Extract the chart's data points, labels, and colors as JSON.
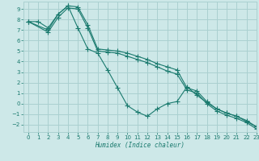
{
  "xlabel": "Humidex (Indice chaleur)",
  "bg_color": "#cde8e8",
  "grid_color": "#aad0d0",
  "line_color": "#1a7a6e",
  "xlim": [
    -0.5,
    23
  ],
  "ylim": [
    -2.7,
    9.7
  ],
  "xticks": [
    0,
    1,
    2,
    3,
    4,
    5,
    6,
    7,
    8,
    9,
    10,
    11,
    12,
    13,
    14,
    15,
    16,
    17,
    18,
    19,
    20,
    21,
    22,
    23
  ],
  "yticks": [
    -2,
    -1,
    0,
    1,
    2,
    3,
    4,
    5,
    6,
    7,
    8,
    9
  ],
  "line1_x": [
    0,
    1,
    2,
    3,
    4,
    5,
    6,
    7,
    8,
    9,
    10,
    11,
    12,
    13,
    14,
    15,
    16,
    17,
    18,
    19,
    20,
    21,
    22,
    23
  ],
  "line1_y": [
    7.8,
    7.8,
    7.2,
    8.5,
    9.3,
    7.2,
    5.2,
    4.8,
    3.2,
    1.5,
    -0.2,
    -0.8,
    -1.2,
    -0.5,
    0.0,
    0.2,
    1.6,
    0.8,
    0.1,
    -0.5,
    -0.9,
    -1.2,
    -1.7,
    -2.2
  ],
  "line2_x": [
    0,
    2,
    3,
    4,
    5,
    6,
    7,
    8,
    9,
    10,
    11,
    12,
    13,
    14,
    15,
    16,
    17,
    18,
    19,
    20,
    21,
    22,
    23
  ],
  "line2_y": [
    7.8,
    7.0,
    8.5,
    9.3,
    9.2,
    7.5,
    5.2,
    5.1,
    5.0,
    4.8,
    4.5,
    4.2,
    3.8,
    3.5,
    3.2,
    1.5,
    1.2,
    0.2,
    -0.5,
    -0.9,
    -1.2,
    -1.6,
    -2.2
  ],
  "line3_x": [
    0,
    2,
    3,
    4,
    5,
    6,
    7,
    8,
    9,
    10,
    11,
    12,
    13,
    14,
    15,
    16,
    17,
    18,
    19,
    20,
    21,
    22,
    23
  ],
  "line3_y": [
    7.8,
    6.8,
    8.2,
    9.1,
    9.0,
    7.2,
    5.0,
    4.9,
    4.8,
    4.5,
    4.2,
    3.9,
    3.5,
    3.1,
    2.8,
    1.3,
    1.0,
    0.0,
    -0.7,
    -1.1,
    -1.4,
    -1.8,
    -2.4
  ]
}
